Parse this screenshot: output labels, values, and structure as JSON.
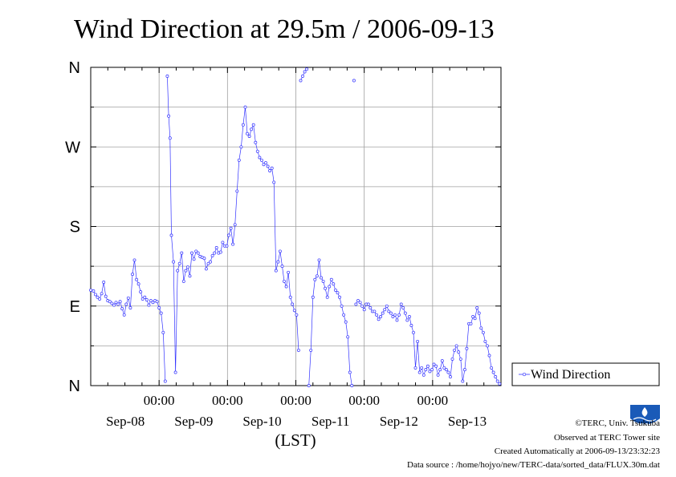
{
  "chart_data": {
    "type": "line",
    "title": "Wind Direction at 29.5m / 2006-09-13",
    "xlabel": "(LST)",
    "ylabel": "",
    "x_unit": "days since 2006-09-07 00:00 LST",
    "xlim": [
      0,
      6
    ],
    "ylim": [
      0,
      360
    ],
    "grid": true,
    "legend_position": "right",
    "y_ticks": [
      {
        "value": 0,
        "label": "N"
      },
      {
        "value": 90,
        "label": "E"
      },
      {
        "value": 180,
        "label": "S"
      },
      {
        "value": 270,
        "label": "W"
      },
      {
        "value": 360,
        "label": "N"
      }
    ],
    "x_ticks": [
      {
        "value": 1,
        "time_label": "00:00",
        "date_label": "Sep-08"
      },
      {
        "value": 2,
        "time_label": "00:00",
        "date_label": "Sep-09"
      },
      {
        "value": 3,
        "time_label": "00:00",
        "date_label": "Sep-10"
      },
      {
        "value": 4,
        "time_label": "00:00",
        "date_label": "Sep-11"
      },
      {
        "value": 5,
        "time_label": "00:00",
        "date_label": "Sep-12"
      },
      {
        "value": 6,
        "time_label": "",
        "date_label": "Sep-13"
      }
    ],
    "series": [
      {
        "name": "Wind Direction",
        "color": "#3333ff",
        "points": [
          [
            0.0,
            108
          ],
          [
            0.04,
            107
          ],
          [
            0.07,
            103
          ],
          [
            0.1,
            100
          ],
          [
            0.13,
            98
          ],
          [
            0.16,
            104
          ],
          [
            0.19,
            117
          ],
          [
            0.22,
            101
          ],
          [
            0.25,
            96
          ],
          [
            0.28,
            95
          ],
          [
            0.31,
            93
          ],
          [
            0.34,
            91
          ],
          [
            0.37,
            94
          ],
          [
            0.4,
            92
          ],
          [
            0.43,
            95
          ],
          [
            0.46,
            87
          ],
          [
            0.49,
            80
          ],
          [
            0.52,
            92
          ],
          [
            0.55,
            99
          ],
          [
            0.58,
            88
          ],
          [
            0.61,
            126
          ],
          [
            0.64,
            142
          ],
          [
            0.67,
            120
          ],
          [
            0.7,
            115
          ],
          [
            0.73,
            106
          ],
          [
            0.76,
            98
          ],
          [
            0.79,
            100
          ],
          [
            0.82,
            97
          ],
          [
            0.85,
            91
          ],
          [
            0.88,
            96
          ],
          [
            0.91,
            94
          ],
          [
            0.94,
            96
          ],
          [
            0.97,
            95
          ],
          [
            1.0,
            88
          ],
          [
            1.03,
            82
          ],
          [
            1.06,
            60
          ],
          [
            1.09,
            5
          ],
          [
            1.12,
            350
          ],
          [
            1.14,
            305
          ],
          [
            1.16,
            280
          ],
          [
            1.18,
            170
          ],
          [
            1.21,
            140
          ],
          [
            1.24,
            15
          ],
          [
            1.27,
            130
          ],
          [
            1.3,
            138
          ],
          [
            1.33,
            150
          ],
          [
            1.36,
            118
          ],
          [
            1.39,
            130
          ],
          [
            1.42,
            134
          ],
          [
            1.45,
            124
          ],
          [
            1.48,
            150
          ],
          [
            1.51,
            143
          ],
          [
            1.54,
            152
          ],
          [
            1.57,
            150
          ],
          [
            1.6,
            146
          ],
          [
            1.63,
            145
          ],
          [
            1.66,
            144
          ],
          [
            1.69,
            132
          ],
          [
            1.72,
            138
          ],
          [
            1.75,
            140
          ],
          [
            1.78,
            147
          ],
          [
            1.81,
            150
          ],
          [
            1.84,
            156
          ],
          [
            1.87,
            150
          ],
          [
            1.9,
            151
          ],
          [
            1.93,
            162
          ],
          [
            1.96,
            158
          ],
          [
            1.99,
            158
          ],
          [
            2.02,
            170
          ],
          [
            2.05,
            178
          ],
          [
            2.08,
            160
          ],
          [
            2.11,
            182
          ],
          [
            2.14,
            220
          ],
          [
            2.17,
            255
          ],
          [
            2.2,
            270
          ],
          [
            2.23,
            295
          ],
          [
            2.26,
            315
          ],
          [
            2.29,
            285
          ],
          [
            2.32,
            282
          ],
          [
            2.35,
            290
          ],
          [
            2.38,
            295
          ],
          [
            2.41,
            275
          ],
          [
            2.44,
            265
          ],
          [
            2.47,
            258
          ],
          [
            2.5,
            255
          ],
          [
            2.53,
            250
          ],
          [
            2.56,
            252
          ],
          [
            2.59,
            248
          ],
          [
            2.62,
            243
          ],
          [
            2.65,
            246
          ],
          [
            2.68,
            230
          ],
          [
            2.71,
            130
          ],
          [
            2.74,
            140
          ],
          [
            2.77,
            152
          ],
          [
            2.8,
            135
          ],
          [
            2.83,
            118
          ],
          [
            2.86,
            112
          ],
          [
            2.89,
            128
          ],
          [
            2.92,
            100
          ],
          [
            2.95,
            92
          ],
          [
            2.98,
            85
          ],
          [
            3.01,
            80
          ],
          [
            3.04,
            40
          ],
          [
            3.07,
            345
          ],
          [
            3.1,
            350
          ],
          [
            3.13,
            355
          ],
          [
            3.16,
            358
          ],
          [
            3.19,
            0
          ],
          [
            3.22,
            40
          ],
          [
            3.25,
            100
          ],
          [
            3.28,
            120
          ],
          [
            3.31,
            124
          ],
          [
            3.34,
            142
          ],
          [
            3.37,
            122
          ],
          [
            3.4,
            118
          ],
          [
            3.43,
            110
          ],
          [
            3.46,
            100
          ],
          [
            3.49,
            112
          ],
          [
            3.52,
            120
          ],
          [
            3.55,
            115
          ],
          [
            3.58,
            108
          ],
          [
            3.61,
            105
          ],
          [
            3.64,
            100
          ],
          [
            3.67,
            90
          ],
          [
            3.7,
            80
          ],
          [
            3.73,
            72
          ],
          [
            3.76,
            55
          ],
          [
            3.79,
            15
          ],
          [
            3.82,
            0
          ],
          [
            3.85,
            345
          ],
          [
            3.88,
            92
          ],
          [
            3.91,
            96
          ],
          [
            3.94,
            94
          ],
          [
            3.97,
            90
          ],
          [
            4.0,
            86
          ],
          [
            4.03,
            92
          ],
          [
            4.06,
            92
          ],
          [
            4.09,
            88
          ],
          [
            4.12,
            84
          ],
          [
            4.15,
            84
          ],
          [
            4.18,
            80
          ],
          [
            4.21,
            75
          ],
          [
            4.24,
            78
          ],
          [
            4.27,
            82
          ],
          [
            4.3,
            86
          ],
          [
            4.33,
            90
          ],
          [
            4.36,
            84
          ],
          [
            4.39,
            82
          ],
          [
            4.42,
            78
          ],
          [
            4.45,
            80
          ],
          [
            4.48,
            74
          ],
          [
            4.51,
            80
          ],
          [
            4.54,
            92
          ],
          [
            4.57,
            88
          ],
          [
            4.6,
            82
          ],
          [
            4.63,
            74
          ],
          [
            4.66,
            78
          ],
          [
            4.69,
            68
          ],
          [
            4.72,
            60
          ],
          [
            4.75,
            20
          ],
          [
            4.78,
            50
          ],
          [
            4.81,
            15
          ],
          [
            4.84,
            20
          ],
          [
            4.87,
            12
          ],
          [
            4.9,
            18
          ],
          [
            4.93,
            22
          ],
          [
            4.96,
            16
          ],
          [
            4.99,
            18
          ],
          [
            5.02,
            24
          ],
          [
            5.05,
            22
          ],
          [
            5.08,
            12
          ],
          [
            5.11,
            18
          ],
          [
            5.14,
            28
          ],
          [
            5.17,
            20
          ],
          [
            5.2,
            18
          ],
          [
            5.23,
            15
          ],
          [
            5.26,
            10
          ],
          [
            5.29,
            30
          ],
          [
            5.32,
            40
          ],
          [
            5.35,
            45
          ],
          [
            5.38,
            38
          ],
          [
            5.41,
            30
          ],
          [
            5.44,
            5
          ],
          [
            5.47,
            18
          ],
          [
            5.5,
            42
          ],
          [
            5.53,
            70
          ],
          [
            5.56,
            70
          ],
          [
            5.59,
            78
          ],
          [
            5.62,
            76
          ],
          [
            5.65,
            88
          ],
          [
            5.68,
            82
          ],
          [
            5.71,
            65
          ],
          [
            5.74,
            60
          ],
          [
            5.77,
            50
          ],
          [
            5.8,
            45
          ],
          [
            5.83,
            34
          ],
          [
            5.86,
            20
          ],
          [
            5.89,
            15
          ],
          [
            5.92,
            10
          ],
          [
            5.95,
            5
          ],
          [
            5.98,
            2
          ]
        ]
      }
    ]
  },
  "legend": {
    "label": "Wind Direction"
  },
  "footer": {
    "credit": "©TERC, Univ. Tsukuba",
    "observed": "Observed at TERC Tower site",
    "created": "Created Automatically at 2006-09-13/23:32:23",
    "source": "Data source : /home/hojyo/new/TERC-data/sorted_data/FLUX.30m.dat"
  },
  "logo": {
    "text": "TERC",
    "color": "#1a5ab8"
  }
}
